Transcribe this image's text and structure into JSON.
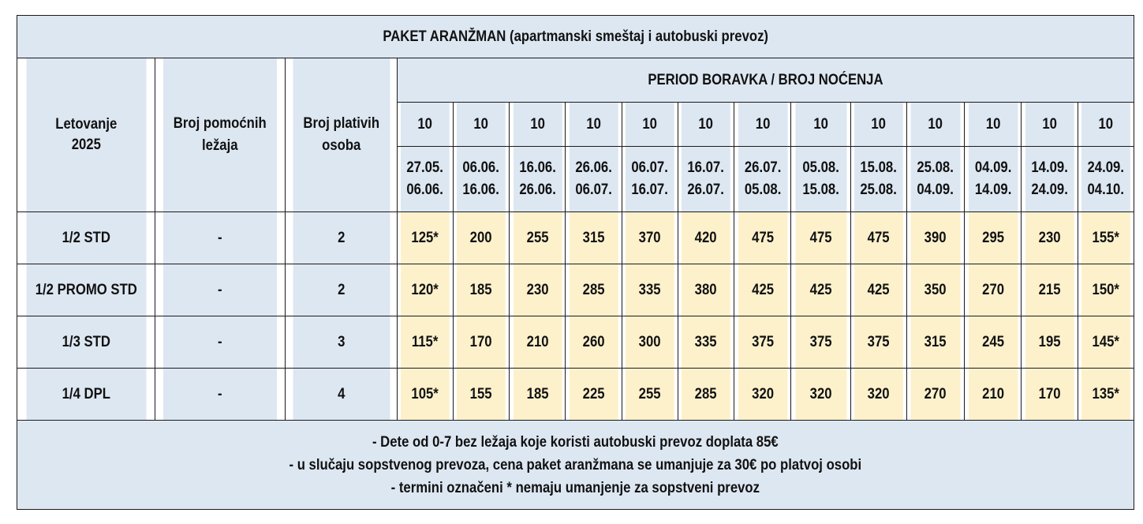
{
  "title": "PAKET ARANŽMAN (apartmanski smeštaj i autobuski prevoz)",
  "header": {
    "season": "Letovanje 2025",
    "aux_beds": "Broj pomoćnih ležaja",
    "paying_persons": "Broj plativih osoba",
    "period": "PERIOD BORAVKA / BROJ NOĆENJA"
  },
  "periods": [
    {
      "nights": "10",
      "from": "27.05.",
      "to": "06.06."
    },
    {
      "nights": "10",
      "from": "06.06.",
      "to": "16.06."
    },
    {
      "nights": "10",
      "from": "16.06.",
      "to": "26.06."
    },
    {
      "nights": "10",
      "from": "26.06.",
      "to": "06.07."
    },
    {
      "nights": "10",
      "from": "06.07.",
      "to": "16.07."
    },
    {
      "nights": "10",
      "from": "16.07.",
      "to": "26.07."
    },
    {
      "nights": "10",
      "from": "26.07.",
      "to": "05.08."
    },
    {
      "nights": "10",
      "from": "05.08.",
      "to": "15.08."
    },
    {
      "nights": "10",
      "from": "15.08.",
      "to": "25.08."
    },
    {
      "nights": "10",
      "from": "25.08.",
      "to": "04.09."
    },
    {
      "nights": "10",
      "from": "04.09.",
      "to": "14.09."
    },
    {
      "nights": "10",
      "from": "14.09.",
      "to": "24.09."
    },
    {
      "nights": "10",
      "from": "24.09.",
      "to": "04.10."
    }
  ],
  "rows": [
    {
      "room": "1/2 STD",
      "aux": "-",
      "persons": "2",
      "prices": [
        "125*",
        "200",
        "255",
        "315",
        "370",
        "420",
        "475",
        "475",
        "475",
        "390",
        "295",
        "230",
        "155*"
      ]
    },
    {
      "room": "1/2 PROMO STD",
      "aux": "-",
      "persons": "2",
      "prices": [
        "120*",
        "185",
        "230",
        "285",
        "335",
        "380",
        "425",
        "425",
        "425",
        "350",
        "270",
        "215",
        "150*"
      ]
    },
    {
      "room": "1/3 STD",
      "aux": "-",
      "persons": "3",
      "prices": [
        "115*",
        "170",
        "210",
        "260",
        "300",
        "335",
        "375",
        "375",
        "375",
        "315",
        "245",
        "195",
        "145*"
      ]
    },
    {
      "room": "1/4 DPL",
      "aux": "-",
      "persons": "4",
      "prices": [
        "105*",
        "155",
        "185",
        "225",
        "255",
        "285",
        "320",
        "320",
        "320",
        "270",
        "210",
        "170",
        "135*"
      ]
    }
  ],
  "notes": [
    "- Dete od 0-7 bez ležaja koje koristi autobuski prevoz doplata 85€",
    "- u slučaju sopstvenog prevoza, cena paket aranžmana se umanjuje za 30€ po platvoj osobi",
    "- termini označeni * nemaju umanjenje za sopstveni prevoz"
  ],
  "colors": {
    "header_bg": "#dde7f2",
    "price_bg": "#fdf1cc",
    "season_text": "#e01010",
    "border": "#1a1a1a"
  }
}
